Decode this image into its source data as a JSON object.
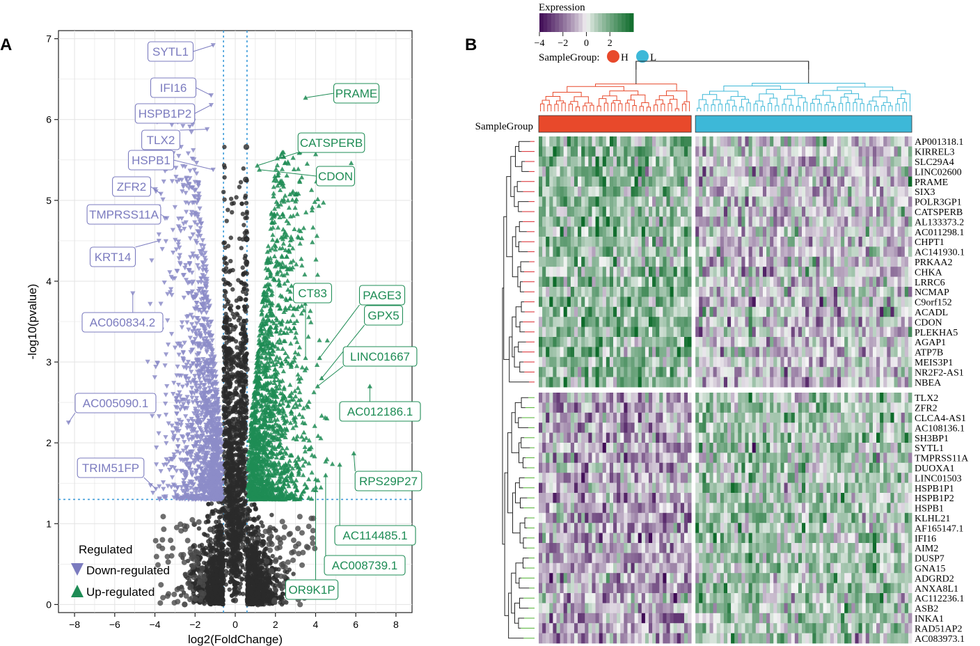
{
  "chart_data": [
    {
      "panel": "A",
      "type": "scatter",
      "xlabel": "log2(FoldChange)",
      "ylabel": "-log10(pvalue)",
      "xlim": [
        -8.8,
        8.8
      ],
      "ylim": [
        -0.1,
        7.1
      ],
      "xticks": [
        -8,
        -6,
        -4,
        -2,
        0,
        2,
        4,
        6,
        8
      ],
      "yticks": [
        0,
        1,
        2,
        3,
        4,
        5,
        6,
        7
      ],
      "fc_threshold": 0.585,
      "p_threshold": 1.3,
      "colors": {
        "down": "#8c8cc8",
        "up": "#1e8c55",
        "ns": "#2b2b2b",
        "threshold": "#3a9ad9"
      },
      "legend": {
        "title": "Regulated",
        "position": "bottom-left",
        "entries": [
          {
            "label": "Down-regulated",
            "color": "#7b7bbf"
          },
          {
            "label": "Up-regulated",
            "color": "#1e8c55"
          }
        ]
      },
      "labeled_down": [
        {
          "gene": "SYTL1",
          "x": -1.1,
          "y": 6.92
        },
        {
          "gene": "IFI16",
          "x": -1.2,
          "y": 6.3
        },
        {
          "gene": "HSPB1P2",
          "x": -1.2,
          "y": 6.18
        },
        {
          "gene": "TLX2",
          "x": -1.4,
          "y": 5.88
        },
        {
          "gene": "HSPB1",
          "x": -1.1,
          "y": 5.38
        },
        {
          "gene": "ZFR2",
          "x": -3.7,
          "y": 5.08
        },
        {
          "gene": "TMPRSS11A",
          "x": -3.4,
          "y": 4.78
        },
        {
          "gene": "KRT14",
          "x": -3.8,
          "y": 4.5
        },
        {
          "gene": "AC060834.2",
          "x": -5.1,
          "y": 3.85
        },
        {
          "gene": "AC005090.1",
          "x": -8.3,
          "y": 2.25
        },
        {
          "gene": "TRIM51FP",
          "x": -3.95,
          "y": 1.43
        }
      ],
      "labeled_up": [
        {
          "gene": "PRAME",
          "x": 3.5,
          "y": 6.27
        },
        {
          "gene": "CATSPERB",
          "x": 1.1,
          "y": 5.43
        },
        {
          "gene": "CDON",
          "x": 1.2,
          "y": 5.38
        },
        {
          "gene": "CT83",
          "x": 3.5,
          "y": 3.05
        },
        {
          "gene": "PAGE3",
          "x": 4.2,
          "y": 3.05
        },
        {
          "gene": "GPX5",
          "x": 4.3,
          "y": 2.8
        },
        {
          "gene": "LINC01667",
          "x": 4.1,
          "y": 2.7
        },
        {
          "gene": "AC012186.1",
          "x": 6.7,
          "y": 2.7
        },
        {
          "gene": "RPS29P27",
          "x": 5.9,
          "y": 1.87
        },
        {
          "gene": "AC114485.1",
          "x": 5.2,
          "y": 1.73
        },
        {
          "gene": "AC008739.1",
          "x": 4.5,
          "y": 1.6
        },
        {
          "gene": "OR9K1P",
          "x": 4.0,
          "y": 1.55
        }
      ]
    },
    {
      "panel": "B",
      "type": "heatmap",
      "legend_title": "Expression",
      "color_scale": {
        "min": -4,
        "max": 4,
        "ticks": [
          -4,
          -2,
          0,
          2
        ],
        "low": "#3f0a55",
        "mid": "#f6f6f6",
        "high": "#0d6b2a"
      },
      "sample_group_label": "SampleGroup",
      "sample_groups": [
        {
          "name": "H",
          "color": "#e8492b",
          "n": 43
        },
        {
          "name": "L",
          "color": "#3db8d8",
          "n": 61
        }
      ],
      "genes_up": [
        "AP001318.1",
        "KIRREL3",
        "SLC29A4",
        "LINC02600",
        "PRAME",
        "SIX3",
        "POLR3GP1",
        "CATSPERB",
        "AL133373.2",
        "AC011298.1",
        "CHPT1",
        "AC141930.1",
        "PRKAA2",
        "CHKA",
        "LRRC6",
        "NCMAP",
        "C9orf152",
        "ACADL",
        "CDON",
        "PLEKHA5",
        "AGAP1",
        "ATP7B",
        "MEIS3P1",
        "NR2F2-AS1",
        "NBEA"
      ],
      "genes_down": [
        "TLX2",
        "ZFR2",
        "CLCA4-AS1",
        "AC108136.1",
        "SH3BP1",
        "SYTL1",
        "TMPRSS11A",
        "DUOXA1",
        "LINC01503",
        "HSPB1P1",
        "HSPB1P2",
        "HSPB1",
        "KLHL21",
        "AF165147.1",
        "IFI16",
        "AIM2",
        "DUSP7",
        "GNA15",
        "ADGRD2",
        "ANXA8L1",
        "AC112236.1",
        "ASB2",
        "INKA1",
        "RAD51AP2",
        "AC083973.1"
      ]
    }
  ]
}
